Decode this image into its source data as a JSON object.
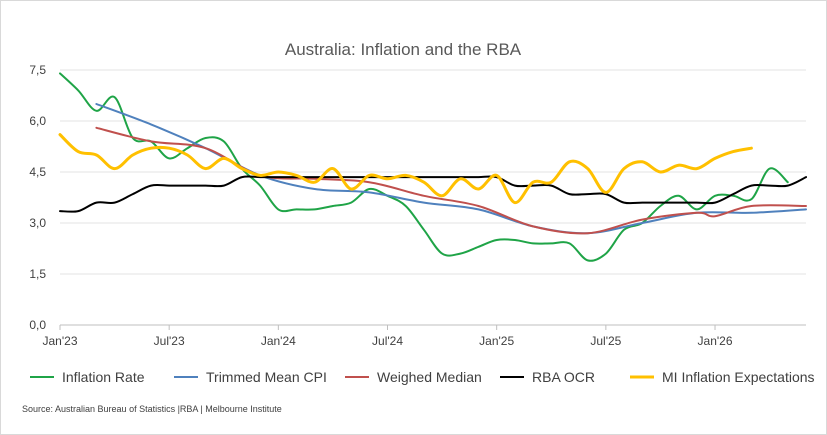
{
  "chart_data": {
    "type": "line",
    "title": "Australia: Inflation and the RBA",
    "xlabel": "",
    "ylabel": "",
    "ylim": [
      0,
      7.5
    ],
    "yticks": [
      "0,0",
      "1,5",
      "3,0",
      "4,5",
      "6,0",
      "7,5"
    ],
    "x_tick_labels": [
      "Jan'23",
      "Jul'23",
      "Jan'24",
      "Jul'24",
      "Jan'25",
      "Jul'25",
      "Jan'26"
    ],
    "x_axis_months": 41,
    "grid": "horizontal",
    "legend_position": "bottom",
    "series": [
      {
        "name": "Inflation Rate",
        "color": "#1fa447",
        "width": 2,
        "points": [
          [
            0,
            7.4
          ],
          [
            1,
            6.9
          ],
          [
            2,
            6.3
          ],
          [
            3,
            6.7
          ],
          [
            4,
            5.5
          ],
          [
            5,
            5.4
          ],
          [
            6,
            4.9
          ],
          [
            7,
            5.2
          ],
          [
            8,
            5.5
          ],
          [
            9,
            5.4
          ],
          [
            10,
            4.6
          ],
          [
            11,
            4.1
          ],
          [
            12,
            3.4
          ],
          [
            13,
            3.4
          ],
          [
            14,
            3.4
          ],
          [
            15,
            3.5
          ],
          [
            16,
            3.6
          ],
          [
            17,
            4.0
          ],
          [
            18,
            3.8
          ],
          [
            19,
            3.5
          ],
          [
            20,
            2.8
          ],
          [
            21,
            2.1
          ],
          [
            22,
            2.1
          ],
          [
            23,
            2.3
          ],
          [
            24,
            2.5
          ],
          [
            25,
            2.5
          ],
          [
            26,
            2.4
          ],
          [
            27,
            2.4
          ],
          [
            28,
            2.4
          ],
          [
            29,
            1.9
          ],
          [
            30,
            2.1
          ],
          [
            31,
            2.8
          ],
          [
            32,
            3.0
          ],
          [
            33,
            3.5
          ],
          [
            34,
            3.8
          ],
          [
            35,
            3.4
          ],
          [
            36,
            3.8
          ],
          [
            37,
            3.8
          ],
          [
            38,
            3.7
          ],
          [
            39,
            4.6
          ],
          [
            40,
            4.2
          ]
        ]
      },
      {
        "name": "Trimmed Mean CPI",
        "color": "#4f81bd",
        "width": 2,
        "points": [
          [
            2,
            6.5
          ],
          [
            5,
            5.9
          ],
          [
            8,
            5.2
          ],
          [
            11,
            4.4
          ],
          [
            14,
            4.0
          ],
          [
            17,
            3.9
          ],
          [
            20,
            3.6
          ],
          [
            23,
            3.4
          ],
          [
            26,
            2.9
          ],
          [
            29,
            2.7
          ],
          [
            32,
            3.0
          ],
          [
            35,
            3.3
          ],
          [
            38,
            3.3
          ],
          [
            41,
            3.4
          ]
        ]
      },
      {
        "name": "Weighed Median",
        "color": "#c0504d",
        "width": 2,
        "points": [
          [
            2,
            5.8
          ],
          [
            5,
            5.4
          ],
          [
            8,
            5.2
          ],
          [
            11,
            4.4
          ],
          [
            14,
            4.3
          ],
          [
            17,
            4.2
          ],
          [
            20,
            3.8
          ],
          [
            23,
            3.5
          ],
          [
            26,
            2.9
          ],
          [
            29,
            2.7
          ],
          [
            32,
            3.1
          ],
          [
            35,
            3.3
          ],
          [
            36,
            3.2
          ],
          [
            38,
            3.5
          ],
          [
            41,
            3.5
          ]
        ]
      },
      {
        "name": "RBA OCR",
        "color": "#000000",
        "width": 2,
        "points": [
          [
            0,
            3.35
          ],
          [
            1,
            3.35
          ],
          [
            2,
            3.6
          ],
          [
            3,
            3.6
          ],
          [
            4,
            3.85
          ],
          [
            5,
            4.1
          ],
          [
            6,
            4.1
          ],
          [
            7,
            4.1
          ],
          [
            8,
            4.1
          ],
          [
            9,
            4.1
          ],
          [
            10,
            4.35
          ],
          [
            11,
            4.35
          ],
          [
            12,
            4.35
          ],
          [
            13,
            4.35
          ],
          [
            14,
            4.35
          ],
          [
            15,
            4.35
          ],
          [
            16,
            4.35
          ],
          [
            17,
            4.35
          ],
          [
            18,
            4.35
          ],
          [
            19,
            4.35
          ],
          [
            20,
            4.35
          ],
          [
            21,
            4.35
          ],
          [
            22,
            4.35
          ],
          [
            23,
            4.35
          ],
          [
            24,
            4.35
          ],
          [
            25,
            4.1
          ],
          [
            26,
            4.1
          ],
          [
            27,
            4.1
          ],
          [
            28,
            3.85
          ],
          [
            29,
            3.85
          ],
          [
            30,
            3.85
          ],
          [
            31,
            3.6
          ],
          [
            32,
            3.6
          ],
          [
            33,
            3.6
          ],
          [
            34,
            3.6
          ],
          [
            35,
            3.6
          ],
          [
            36,
            3.6
          ],
          [
            37,
            3.85
          ],
          [
            38,
            4.1
          ],
          [
            39,
            4.1
          ],
          [
            40,
            4.1
          ],
          [
            41,
            4.35
          ]
        ]
      },
      {
        "name": "MI Inflation Expectations",
        "color": "#ffc000",
        "width": 3,
        "points": [
          [
            0,
            5.6
          ],
          [
            1,
            5.1
          ],
          [
            2,
            5.0
          ],
          [
            3,
            4.6
          ],
          [
            4,
            5.0
          ],
          [
            5,
            5.2
          ],
          [
            6,
            5.2
          ],
          [
            7,
            5.0
          ],
          [
            8,
            4.6
          ],
          [
            9,
            4.9
          ],
          [
            10,
            4.6
          ],
          [
            11,
            4.4
          ],
          [
            12,
            4.5
          ],
          [
            13,
            4.4
          ],
          [
            14,
            4.2
          ],
          [
            15,
            4.6
          ],
          [
            16,
            4.0
          ],
          [
            17,
            4.4
          ],
          [
            18,
            4.3
          ],
          [
            19,
            4.4
          ],
          [
            20,
            4.2
          ],
          [
            21,
            3.8
          ],
          [
            22,
            4.3
          ],
          [
            23,
            4.0
          ],
          [
            24,
            4.4
          ],
          [
            25,
            3.6
          ],
          [
            26,
            4.2
          ],
          [
            27,
            4.2
          ],
          [
            28,
            4.8
          ],
          [
            29,
            4.6
          ],
          [
            30,
            3.9
          ],
          [
            31,
            4.6
          ],
          [
            32,
            4.8
          ],
          [
            33,
            4.5
          ],
          [
            34,
            4.7
          ],
          [
            35,
            4.6
          ],
          [
            36,
            4.9
          ],
          [
            37,
            5.1
          ],
          [
            38,
            5.2
          ]
        ]
      }
    ]
  },
  "source_note": "Source: Australian Bureau of Statistics |RBA | Melbourne Institute"
}
